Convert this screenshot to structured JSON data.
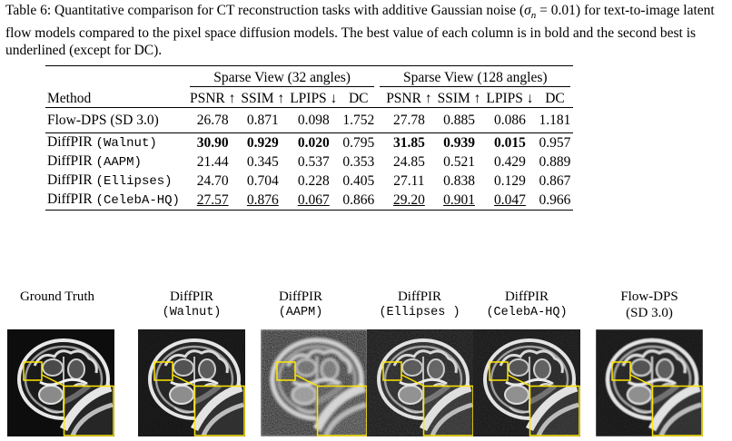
{
  "caption": {
    "part1": "Table 6: Quantitative comparison for CT reconstruction tasks with additive Gaussian noise (",
    "sigma": "σ",
    "sub": "n",
    "part2": " = 0.01) for text-to-image latent flow models compared to the pixel space diffusion models. The best value of each column is in bold and the second best is underlined (except for DC)."
  },
  "table": {
    "group1": "Sparse View (32 angles)",
    "group2": "Sparse View (128 angles)",
    "method_header": "Method",
    "columns": [
      "PSNR ↑",
      "SSIM ↑",
      "LPIPS ↓",
      "DC",
      "PSNR ↑",
      "SSIM ↑",
      "LPIPS ↓",
      "DC"
    ],
    "baseline": {
      "name": "Flow-DPS (SD 3.0)",
      "values": [
        "26.78",
        "0.871",
        "0.098",
        "1.752",
        "27.78",
        "0.885",
        "0.086",
        "1.181"
      ]
    },
    "rows": [
      {
        "name": "DiffPIR",
        "tag": "(Walnut)",
        "values": [
          "30.90",
          "0.929",
          "0.020",
          "0.795",
          "31.85",
          "0.939",
          "0.015",
          "0.957"
        ],
        "style": [
          "b",
          "b",
          "b",
          "",
          "b",
          "b",
          "b",
          ""
        ]
      },
      {
        "name": "DiffPIR",
        "tag": "(AAPM)",
        "values": [
          "21.44",
          "0.345",
          "0.537",
          "0.353",
          "24.85",
          "0.521",
          "0.429",
          "0.889"
        ],
        "style": [
          "",
          "",
          "",
          "",
          "",
          "",
          "",
          ""
        ]
      },
      {
        "name": "DiffPIR",
        "tag": "(Ellipses)",
        "values": [
          "24.70",
          "0.704",
          "0.228",
          "0.405",
          "27.11",
          "0.838",
          "0.129",
          "0.867"
        ],
        "style": [
          "",
          "",
          "",
          "",
          "",
          "",
          "",
          ""
        ]
      },
      {
        "name": "DiffPIR",
        "tag": "(CelebA-HQ)",
        "values": [
          "27.57",
          "0.876",
          "0.067",
          "0.866",
          "29.20",
          "0.901",
          "0.047",
          "0.966"
        ],
        "style": [
          "u",
          "u",
          "u",
          "",
          "u",
          "u",
          "u",
          ""
        ]
      }
    ]
  },
  "figure": {
    "panels": [
      {
        "line1": "Ground Truth",
        "line2": "",
        "mono": false,
        "noise": 0,
        "blur": 0
      },
      {
        "line1": "DiffPIR",
        "line2": "(Walnut)",
        "mono": true,
        "noise": 0.15,
        "blur": 0
      },
      {
        "line1": "DiffPIR",
        "line2": "(AAPM)",
        "mono": true,
        "noise": 0.9,
        "blur": 1.2
      },
      {
        "line1": "DiffPIR",
        "line2": "(Ellipses )",
        "mono": true,
        "noise": 0.35,
        "blur": 0.3
      },
      {
        "line1": "DiffPIR",
        "line2": "(CelebA-HQ)",
        "mono": true,
        "noise": 0.25,
        "blur": 0.2
      },
      {
        "line1": "Flow-DPS",
        "line2": "(SD 3.0)",
        "mono": false,
        "noise": 0.2,
        "blur": 0.6
      }
    ]
  }
}
